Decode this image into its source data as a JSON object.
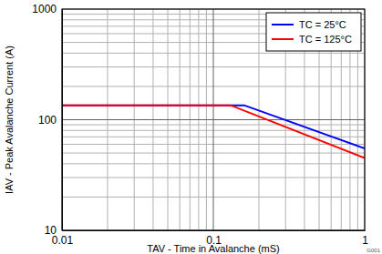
{
  "chart_data": {
    "type": "line",
    "x_label": "TAV - Time in Avalanche (mS)",
    "y_label": "IAV - Peak Avalanche Current (A)",
    "annotations": [
      "G001"
    ],
    "log": true,
    "grid": true,
    "legend": "top-right",
    "xlim": [
      0.01,
      1
    ],
    "ylim": [
      10,
      1000
    ],
    "xticks": [
      0.01,
      0.1,
      1
    ],
    "yticks": [
      10,
      100,
      1000
    ],
    "series": [
      {
        "name": "TC = 25°C",
        "color": "#0000ff",
        "x": [
          0.01,
          0.16,
          1
        ],
        "values": [
          135,
          135,
          55
        ]
      },
      {
        "name": "TC = 125°C",
        "color": "#ff0000",
        "x": [
          0.01,
          0.13,
          1
        ],
        "values": [
          135,
          135,
          45
        ]
      }
    ]
  }
}
